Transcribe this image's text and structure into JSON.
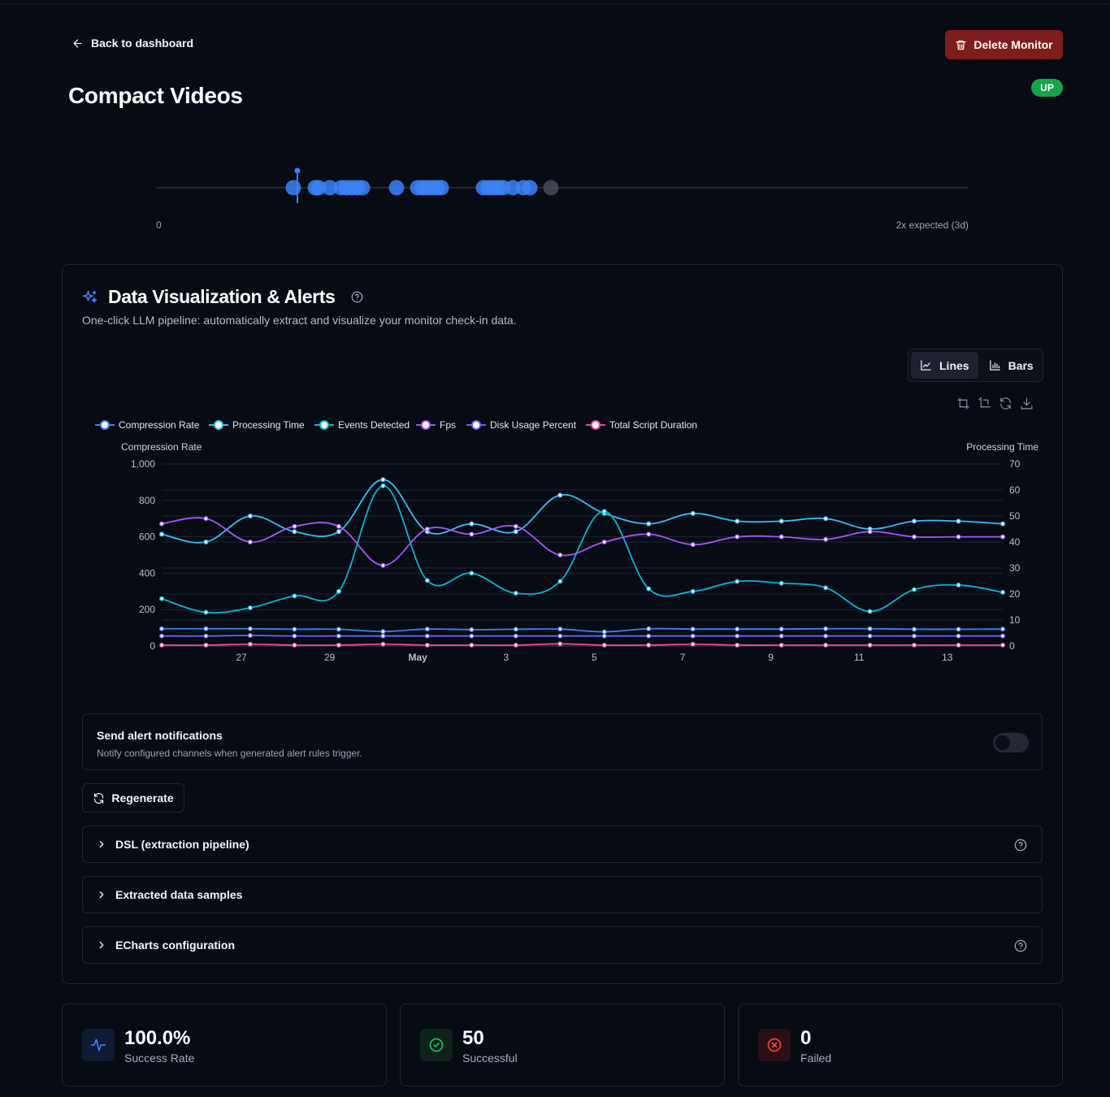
{
  "nav": {
    "back_label": "Back to dashboard"
  },
  "actions": {
    "delete_label": "Delete Monitor"
  },
  "monitor": {
    "title": "Compact Videos",
    "status": "UP"
  },
  "timeline": {
    "min_label": "0",
    "max_label": "2x expected (3d)",
    "dot_color": "#3b82f6",
    "checkins": [
      0.169,
      0.196,
      0.2,
      0.214,
      0.228,
      0.234,
      0.241,
      0.248,
      0.254,
      0.296,
      0.322,
      0.328,
      0.334,
      0.34,
      0.346,
      0.351,
      0.403,
      0.409,
      0.415,
      0.421,
      0.427,
      0.439,
      0.452,
      0.46,
      0.486
    ],
    "latest": 0.174
  },
  "viz": {
    "title": "Data Visualization & Alerts",
    "description": "One-click LLM pipeline: automatically extract and visualize your monitor check-in data.",
    "view_toggle": {
      "lines_label": "Lines",
      "bars_label": "Bars",
      "active": "lines"
    },
    "toolbox_icons": [
      "zoom-area-icon",
      "zoom-reset-icon",
      "restore-icon",
      "download-icon"
    ]
  },
  "chart_data": {
    "type": "line",
    "x_tick_labels": [
      "27",
      "29",
      "May",
      "3",
      "5",
      "7",
      "9",
      "11",
      "13"
    ],
    "y_left": {
      "label": "Compression Rate",
      "min": 0,
      "max": 1000,
      "ticks": [
        "0",
        "200",
        "400",
        "600",
        "800",
        "1,000"
      ]
    },
    "y_right": {
      "label": "Processing Time",
      "min": 0,
      "max": 70,
      "ticks": [
        "0",
        "10",
        "20",
        "30",
        "40",
        "50",
        "60",
        "70"
      ]
    },
    "grid": true,
    "legend_position": "top-left",
    "series": [
      {
        "name": "Compression Rate",
        "color": "#3b82f6",
        "axis": "left",
        "values": [
          95,
          95,
          95,
          92,
          92,
          80,
          93,
          90,
          92,
          93,
          78,
          95,
          93,
          93,
          93,
          95,
          95,
          92,
          92,
          93
        ]
      },
      {
        "name": "Processing Time",
        "color": "#38bdf8",
        "axis": "right",
        "values": [
          43,
          40,
          50,
          44,
          44,
          64,
          44,
          47,
          44,
          58,
          51,
          47,
          51,
          48,
          48,
          49,
          45,
          48,
          48,
          47
        ]
      },
      {
        "name": "Events Detected",
        "color": "#06b6d4",
        "axis": "left",
        "values": [
          260,
          185,
          210,
          275,
          300,
          880,
          360,
          400,
          290,
          355,
          740,
          315,
          300,
          355,
          345,
          320,
          190,
          310,
          335,
          295
        ]
      },
      {
        "name": "Fps",
        "color": "#a855f7",
        "axis": "right",
        "values": [
          47,
          49,
          40,
          46,
          46,
          31,
          45,
          43,
          46,
          35,
          40,
          43,
          39,
          42,
          42,
          41,
          44,
          42,
          42,
          42
        ]
      },
      {
        "name": "Disk Usage Percent",
        "color": "#6366f1",
        "axis": "left",
        "values": [
          55,
          55,
          58,
          55,
          55,
          55,
          55,
          55,
          55,
          55,
          55,
          55,
          55,
          55,
          55,
          55,
          55,
          55,
          55,
          55
        ]
      },
      {
        "name": "Total Script Duration",
        "color": "#ec4899",
        "axis": "left",
        "values": [
          5,
          5,
          10,
          5,
          5,
          10,
          5,
          5,
          5,
          12,
          5,
          5,
          10,
          5,
          5,
          5,
          5,
          5,
          5,
          5
        ]
      }
    ]
  },
  "alerts": {
    "title": "Send alert notifications",
    "subtitle": "Notify configured channels when generated alert rules trigger.",
    "enabled": false
  },
  "regenerate_label": "Regenerate",
  "accordions": [
    {
      "label": "DSL (extraction pipeline)",
      "has_help": true
    },
    {
      "label": "Extracted data samples",
      "has_help": false
    },
    {
      "label": "ECharts configuration",
      "has_help": true
    }
  ],
  "stats": [
    {
      "value": "100.0%",
      "label": "Success Rate",
      "icon": "activity-icon",
      "color": "#3b82f6"
    },
    {
      "value": "50",
      "label": "Successful",
      "icon": "check-circle-icon",
      "color": "#22c55e"
    },
    {
      "value": "0",
      "label": "Failed",
      "icon": "x-circle-icon",
      "color": "#ef4444"
    }
  ]
}
